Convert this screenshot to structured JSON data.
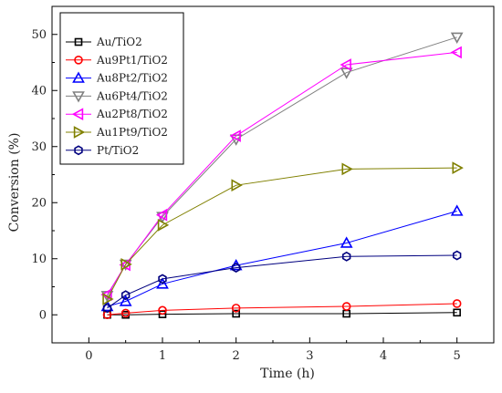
{
  "chart_data": {
    "type": "line",
    "title": "",
    "xlabel": "Time (h)",
    "ylabel": "Conversion (%)",
    "xlim": [
      -0.5,
      5.5
    ],
    "ylim": [
      -5,
      55
    ],
    "xticks": [
      0,
      0.5,
      1,
      2,
      3,
      3.5,
      4,
      5
    ],
    "xtick_labels": [
      "0",
      "1",
      "2",
      "3",
      "4",
      "5"
    ],
    "xtick_label_values": [
      0,
      1,
      2,
      3,
      4,
      5
    ],
    "yticks": [
      0,
      10,
      20,
      30,
      40,
      50
    ],
    "ytick_labels": [
      "0",
      "10",
      "20",
      "30",
      "40",
      "50"
    ],
    "grid": false,
    "legend_position": "top-left",
    "x": [
      0.25,
      0.5,
      1,
      2,
      3.5,
      5
    ],
    "series": [
      {
        "name": "Au/TiO2",
        "color": "#000000",
        "marker": "square",
        "values": [
          0,
          0,
          0.1,
          0.2,
          0.2,
          0.4
        ]
      },
      {
        "name": "Au9Pt1/TiO2",
        "color": "#ff0000",
        "marker": "circle",
        "values": [
          0,
          0.3,
          0.8,
          1.2,
          1.5,
          2.0
        ]
      },
      {
        "name": "Au8Pt2/TiO2",
        "color": "#0000ff",
        "marker": "triangle-up",
        "values": [
          1.5,
          2.4,
          5.5,
          8.8,
          12.8,
          18.5
        ]
      },
      {
        "name": "Au6Pt4/TiO2",
        "color": "#808080",
        "marker": "triangle-down",
        "values": [
          3.4,
          9.0,
          17.5,
          31.3,
          43.2,
          49.5
        ]
      },
      {
        "name": "Au2Pt8/TiO2",
        "color": "#ff00ff",
        "marker": "triangle-left",
        "values": [
          3.6,
          8.9,
          17.8,
          31.9,
          44.6,
          46.8
        ]
      },
      {
        "name": "Au1Pt9/TiO2",
        "color": "#808000",
        "marker": "triangle-right",
        "values": [
          2.8,
          9.0,
          16.0,
          23.1,
          26.0,
          26.2
        ]
      },
      {
        "name": "Pt/TiO2",
        "color": "#00007f",
        "marker": "hexagon",
        "values": [
          1.2,
          3.5,
          6.4,
          8.4,
          10.4,
          10.6
        ]
      }
    ]
  }
}
